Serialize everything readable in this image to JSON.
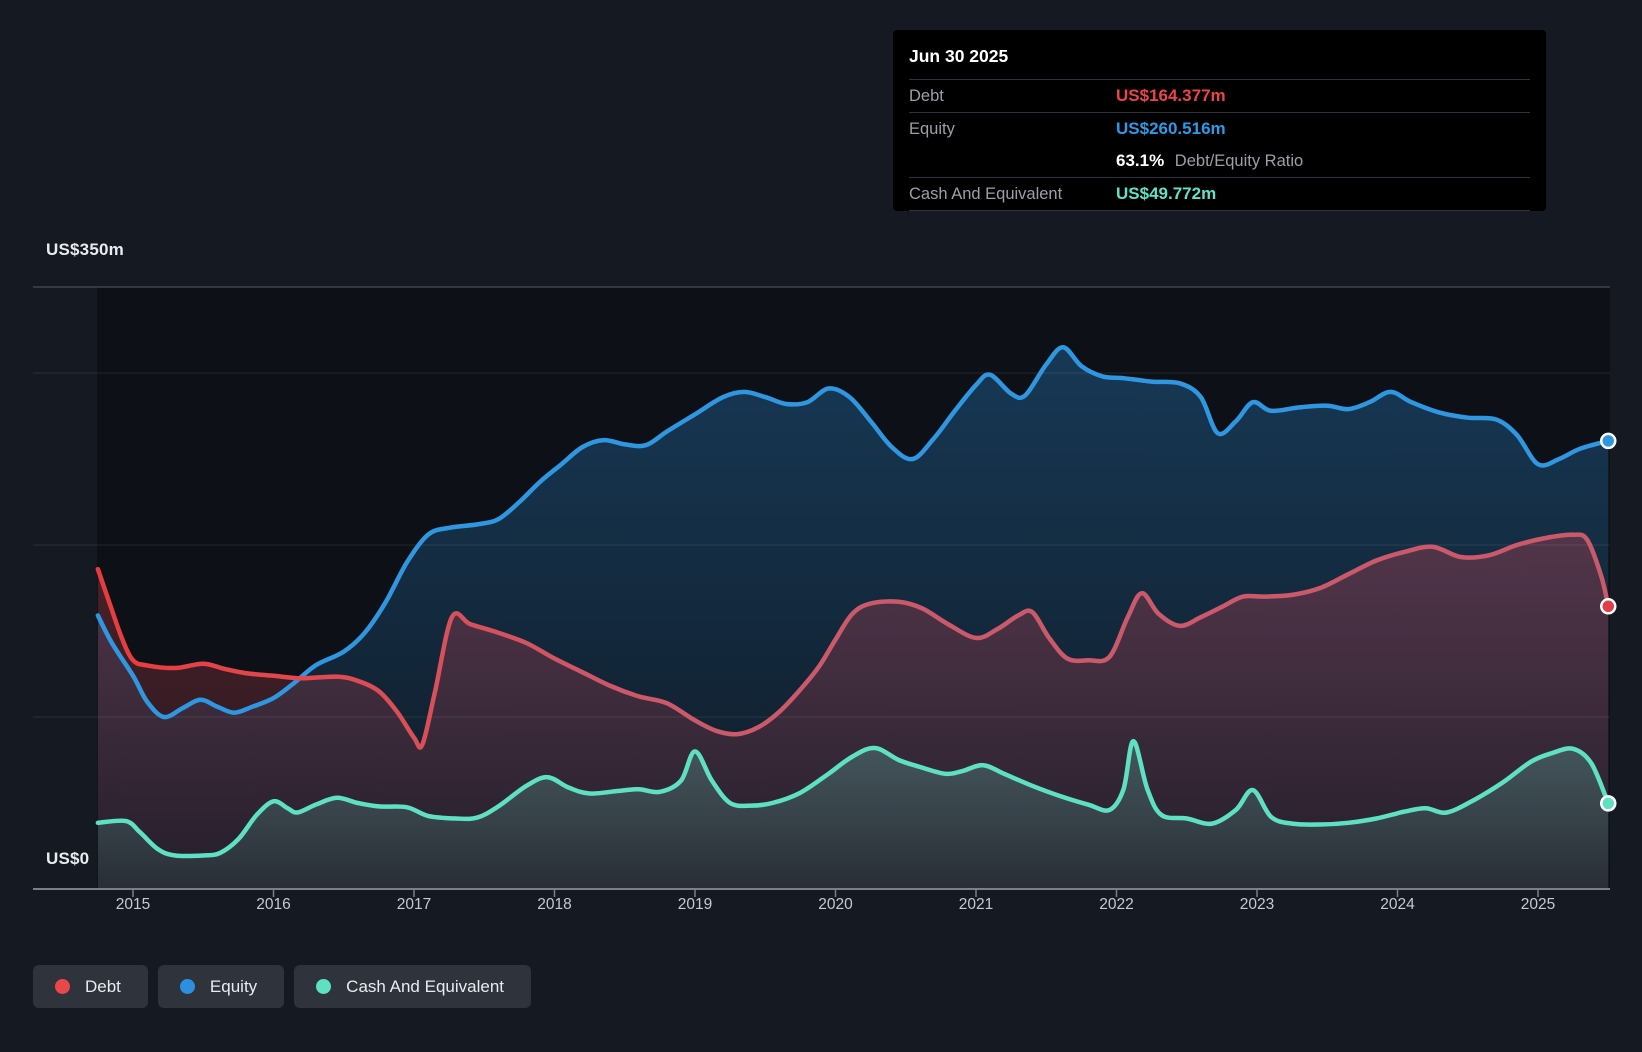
{
  "tooltip": {
    "date": "Jun 30 2025",
    "debt_label": "Debt",
    "debt_value": "US$164.377m",
    "equity_label": "Equity",
    "equity_value": "US$260.516m",
    "ratio_value": "63.1%",
    "ratio_label": "Debt/Equity Ratio",
    "cash_label": "Cash And Equivalent",
    "cash_value": "US$49.772m"
  },
  "axes": {
    "y_max_label": "US$350m",
    "y_zero_label": "US$0",
    "x_ticks": [
      "2015",
      "2016",
      "2017",
      "2018",
      "2019",
      "2020",
      "2021",
      "2022",
      "2023",
      "2024",
      "2025"
    ]
  },
  "legend": {
    "items": [
      {
        "label": "Debt",
        "color": "#e8474b"
      },
      {
        "label": "Equity",
        "color": "#2b90e0"
      },
      {
        "label": "Cash And Equivalent",
        "color": "#5ee0c2"
      }
    ]
  },
  "colors": {
    "page_bg": "#151a22",
    "plot_bg": "#0d1117",
    "grid_top": "#3e444d",
    "grid_soft": "rgba(255,255,255,0.09)",
    "axis": "#7b8087",
    "debt_line_start": "#e73c3c",
    "debt_line_end": "#ca5a6a",
    "equity_line": "#2f96e0",
    "cash_line": "#5ee0c2"
  },
  "chart_data": {
    "type": "area",
    "title": "Debt to Equity History",
    "unit": "US$ millions",
    "x_axis": {
      "ticks": [
        2015,
        2016,
        2017,
        2018,
        2019,
        2020,
        2021,
        2022,
        2023,
        2024,
        2025
      ],
      "range": [
        2014.74,
        2025.5
      ]
    },
    "y_axis": {
      "range": [
        0,
        350
      ],
      "gridline_values": [
        100,
        200,
        300,
        350
      ],
      "top_label": "US$350m",
      "zero_label": "US$0"
    },
    "legend_position": "bottom-left",
    "series": [
      {
        "name": "Debt",
        "color": "#e8474b",
        "end_value": 164.377,
        "points": [
          [
            2014.75,
            186
          ],
          [
            2014.83,
            167
          ],
          [
            2014.92,
            146
          ],
          [
            2015.0,
            133
          ],
          [
            2015.1,
            130
          ],
          [
            2015.3,
            128.5
          ],
          [
            2015.5,
            131
          ],
          [
            2015.65,
            128
          ],
          [
            2015.8,
            125.5
          ],
          [
            2016.0,
            124
          ],
          [
            2016.2,
            122.5
          ],
          [
            2016.45,
            123.5
          ],
          [
            2016.6,
            121
          ],
          [
            2016.75,
            115
          ],
          [
            2016.88,
            103
          ],
          [
            2017.0,
            88
          ],
          [
            2017.06,
            84
          ],
          [
            2017.15,
            115
          ],
          [
            2017.27,
            158
          ],
          [
            2017.4,
            154
          ],
          [
            2017.6,
            149
          ],
          [
            2017.8,
            143
          ],
          [
            2018.0,
            134
          ],
          [
            2018.2,
            126
          ],
          [
            2018.4,
            118
          ],
          [
            2018.6,
            112
          ],
          [
            2018.8,
            108
          ],
          [
            2019.0,
            98
          ],
          [
            2019.15,
            92
          ],
          [
            2019.3,
            90
          ],
          [
            2019.45,
            94
          ],
          [
            2019.6,
            103
          ],
          [
            2019.75,
            116
          ],
          [
            2019.88,
            129
          ],
          [
            2020.0,
            145
          ],
          [
            2020.12,
            160
          ],
          [
            2020.25,
            166
          ],
          [
            2020.45,
            167
          ],
          [
            2020.62,
            163
          ],
          [
            2020.8,
            154
          ],
          [
            2021.0,
            146
          ],
          [
            2021.15,
            151
          ],
          [
            2021.3,
            159
          ],
          [
            2021.4,
            161
          ],
          [
            2021.52,
            146
          ],
          [
            2021.65,
            134
          ],
          [
            2021.8,
            133
          ],
          [
            2021.95,
            135
          ],
          [
            2022.08,
            158
          ],
          [
            2022.18,
            172
          ],
          [
            2022.3,
            160
          ],
          [
            2022.45,
            153
          ],
          [
            2022.6,
            158
          ],
          [
            2022.75,
            164
          ],
          [
            2022.9,
            170
          ],
          [
            2023.05,
            170
          ],
          [
            2023.25,
            171
          ],
          [
            2023.45,
            175
          ],
          [
            2023.65,
            183
          ],
          [
            2023.85,
            191
          ],
          [
            2024.05,
            196
          ],
          [
            2024.25,
            199
          ],
          [
            2024.45,
            193
          ],
          [
            2024.65,
            194
          ],
          [
            2024.85,
            200
          ],
          [
            2025.05,
            204
          ],
          [
            2025.25,
            206
          ],
          [
            2025.35,
            203
          ],
          [
            2025.45,
            182
          ],
          [
            2025.5,
            164.377
          ]
        ]
      },
      {
        "name": "Equity",
        "color": "#2f96e0",
        "end_value": 260.516,
        "points": [
          [
            2014.75,
            159
          ],
          [
            2014.85,
            143
          ],
          [
            2015.0,
            124
          ],
          [
            2015.1,
            109
          ],
          [
            2015.22,
            100
          ],
          [
            2015.35,
            105
          ],
          [
            2015.48,
            110
          ],
          [
            2015.6,
            106
          ],
          [
            2015.72,
            102.5
          ],
          [
            2015.85,
            106
          ],
          [
            2016.0,
            111
          ],
          [
            2016.15,
            120
          ],
          [
            2016.3,
            130
          ],
          [
            2016.5,
            138
          ],
          [
            2016.65,
            149
          ],
          [
            2016.8,
            167
          ],
          [
            2016.95,
            190
          ],
          [
            2017.1,
            206
          ],
          [
            2017.25,
            210
          ],
          [
            2017.45,
            212
          ],
          [
            2017.6,
            215
          ],
          [
            2017.75,
            225
          ],
          [
            2017.9,
            237
          ],
          [
            2018.05,
            247
          ],
          [
            2018.2,
            257
          ],
          [
            2018.35,
            261
          ],
          [
            2018.5,
            258.5
          ],
          [
            2018.65,
            258
          ],
          [
            2018.8,
            266
          ],
          [
            2019.0,
            276
          ],
          [
            2019.2,
            286
          ],
          [
            2019.35,
            289
          ],
          [
            2019.5,
            286
          ],
          [
            2019.65,
            282
          ],
          [
            2019.8,
            283
          ],
          [
            2019.95,
            291
          ],
          [
            2020.1,
            286
          ],
          [
            2020.25,
            272
          ],
          [
            2020.4,
            257
          ],
          [
            2020.55,
            250
          ],
          [
            2020.7,
            262
          ],
          [
            2020.85,
            278
          ],
          [
            2021.0,
            293
          ],
          [
            2021.1,
            299
          ],
          [
            2021.25,
            288
          ],
          [
            2021.35,
            287
          ],
          [
            2021.5,
            305
          ],
          [
            2021.62,
            315
          ],
          [
            2021.75,
            304
          ],
          [
            2021.9,
            298
          ],
          [
            2022.05,
            297
          ],
          [
            2022.25,
            295
          ],
          [
            2022.45,
            294
          ],
          [
            2022.6,
            286
          ],
          [
            2022.72,
            265
          ],
          [
            2022.85,
            272
          ],
          [
            2022.97,
            283
          ],
          [
            2023.1,
            278
          ],
          [
            2023.3,
            280
          ],
          [
            2023.5,
            281
          ],
          [
            2023.65,
            279
          ],
          [
            2023.8,
            283
          ],
          [
            2023.95,
            289
          ],
          [
            2024.1,
            283
          ],
          [
            2024.3,
            277
          ],
          [
            2024.5,
            274
          ],
          [
            2024.7,
            273
          ],
          [
            2024.85,
            264
          ],
          [
            2025.0,
            247
          ],
          [
            2025.15,
            250
          ],
          [
            2025.3,
            256
          ],
          [
            2025.5,
            260.516
          ]
        ]
      },
      {
        "name": "Cash And Equivalent",
        "color": "#5ee0c2",
        "end_value": 49.772,
        "points": [
          [
            2014.75,
            38.5
          ],
          [
            2014.95,
            39.5
          ],
          [
            2015.05,
            33
          ],
          [
            2015.18,
            23
          ],
          [
            2015.3,
            19.5
          ],
          [
            2015.5,
            19.5
          ],
          [
            2015.62,
            21
          ],
          [
            2015.75,
            29
          ],
          [
            2015.88,
            43
          ],
          [
            2016.0,
            51
          ],
          [
            2016.1,
            47
          ],
          [
            2016.17,
            44.5
          ],
          [
            2016.3,
            49
          ],
          [
            2016.45,
            53
          ],
          [
            2016.6,
            50
          ],
          [
            2016.75,
            48
          ],
          [
            2016.95,
            47.5
          ],
          [
            2017.1,
            42.5
          ],
          [
            2017.3,
            41
          ],
          [
            2017.45,
            41.5
          ],
          [
            2017.6,
            48
          ],
          [
            2017.8,
            60
          ],
          [
            2017.95,
            65
          ],
          [
            2018.1,
            59
          ],
          [
            2018.25,
            55.5
          ],
          [
            2018.45,
            57
          ],
          [
            2018.6,
            58
          ],
          [
            2018.75,
            56.5
          ],
          [
            2018.9,
            63
          ],
          [
            2019.0,
            80
          ],
          [
            2019.12,
            63
          ],
          [
            2019.25,
            50
          ],
          [
            2019.4,
            48.5
          ],
          [
            2019.55,
            50
          ],
          [
            2019.75,
            56
          ],
          [
            2019.95,
            67
          ],
          [
            2020.12,
            77
          ],
          [
            2020.28,
            82
          ],
          [
            2020.45,
            75
          ],
          [
            2020.6,
            71
          ],
          [
            2020.78,
            67
          ],
          [
            2020.9,
            68.5
          ],
          [
            2021.05,
            72
          ],
          [
            2021.2,
            67
          ],
          [
            2021.4,
            60
          ],
          [
            2021.6,
            54
          ],
          [
            2021.8,
            49
          ],
          [
            2021.95,
            46
          ],
          [
            2022.05,
            58
          ],
          [
            2022.12,
            86
          ],
          [
            2022.22,
            58
          ],
          [
            2022.32,
            43
          ],
          [
            2022.5,
            41
          ],
          [
            2022.68,
            38
          ],
          [
            2022.85,
            46
          ],
          [
            2022.97,
            57.5
          ],
          [
            2023.1,
            42
          ],
          [
            2023.25,
            38
          ],
          [
            2023.45,
            37.5
          ],
          [
            2023.65,
            38.5
          ],
          [
            2023.85,
            41
          ],
          [
            2024.05,
            45
          ],
          [
            2024.2,
            47
          ],
          [
            2024.35,
            44.5
          ],
          [
            2024.55,
            52
          ],
          [
            2024.75,
            62
          ],
          [
            2024.95,
            74
          ],
          [
            2025.1,
            79
          ],
          [
            2025.25,
            81.5
          ],
          [
            2025.38,
            73
          ],
          [
            2025.5,
            49.772
          ]
        ]
      }
    ]
  }
}
